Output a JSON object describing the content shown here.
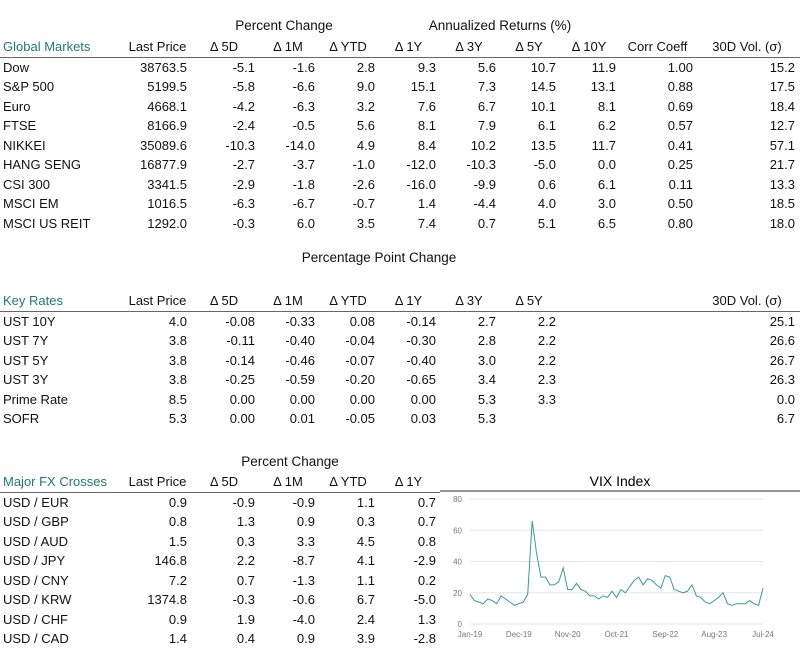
{
  "global": {
    "group_pct": "Percent Change",
    "group_ann": "Annualized Returns (%)",
    "headers": [
      "Global Markets",
      "Last Price",
      "Δ 5D",
      "Δ 1M",
      "Δ YTD",
      "Δ 1Y",
      "Δ 3Y",
      "Δ 5Y",
      "Δ 10Y",
      "Corr Coeff",
      "30D Vol. (σ)"
    ],
    "rows": [
      [
        "Dow",
        "38763.5",
        "-5.1",
        "-1.6",
        "2.8",
        "9.3",
        "5.6",
        "10.7",
        "11.9",
        "1.00",
        "15.2"
      ],
      [
        "S&P 500",
        "5199.5",
        "-5.8",
        "-6.6",
        "9.0",
        "15.1",
        "7.3",
        "14.5",
        "13.1",
        "0.88",
        "17.5"
      ],
      [
        "Euro",
        "4668.1",
        "-4.2",
        "-6.3",
        "3.2",
        "7.6",
        "6.7",
        "10.1",
        "8.1",
        "0.69",
        "18.4"
      ],
      [
        "FTSE",
        "8166.9",
        "-2.4",
        "-0.5",
        "5.6",
        "8.1",
        "7.9",
        "6.1",
        "6.2",
        "0.57",
        "12.7"
      ],
      [
        "NIKKEI",
        "35089.6",
        "-10.3",
        "-14.0",
        "4.9",
        "8.4",
        "10.2",
        "13.5",
        "11.7",
        "0.41",
        "57.1"
      ],
      [
        "HANG SENG",
        "16877.9",
        "-2.7",
        "-3.7",
        "-1.0",
        "-12.0",
        "-10.3",
        "-5.0",
        "0.0",
        "0.25",
        "21.7"
      ],
      [
        "CSI 300",
        "3341.5",
        "-2.9",
        "-1.8",
        "-2.6",
        "-16.0",
        "-9.9",
        "0.6",
        "6.1",
        "0.11",
        "13.3"
      ],
      [
        "MSCI EM",
        "1016.5",
        "-6.3",
        "-6.7",
        "-0.7",
        "1.4",
        "-4.4",
        "4.0",
        "3.0",
        "0.50",
        "18.5"
      ],
      [
        "MSCI US REIT",
        "1292.0",
        "-0.3",
        "6.0",
        "3.5",
        "7.4",
        "0.7",
        "5.1",
        "6.5",
        "0.80",
        "18.0"
      ]
    ]
  },
  "rates": {
    "group": "Percentage Point Change",
    "headers": [
      "Key Rates",
      "Last Price",
      "Δ 5D",
      "Δ 1M",
      "Δ YTD",
      "Δ 1Y",
      "Δ 3Y",
      "Δ 5Y",
      "",
      "",
      "30D Vol. (σ)"
    ],
    "rows": [
      [
        "UST 10Y",
        "4.0",
        "-0.08",
        "-0.33",
        "0.08",
        "-0.14",
        "2.7",
        "2.2",
        "",
        "",
        "25.1"
      ],
      [
        "UST 7Y",
        "3.8",
        "-0.11",
        "-0.40",
        "-0.04",
        "-0.30",
        "2.8",
        "2.2",
        "",
        "",
        "26.6"
      ],
      [
        "UST 5Y",
        "3.8",
        "-0.14",
        "-0.46",
        "-0.07",
        "-0.40",
        "3.0",
        "2.2",
        "",
        "",
        "26.7"
      ],
      [
        "UST 3Y",
        "3.8",
        "-0.25",
        "-0.59",
        "-0.20",
        "-0.65",
        "3.4",
        "2.3",
        "",
        "",
        "26.3"
      ],
      [
        "Prime Rate",
        "8.5",
        "0.00",
        "0.00",
        "0.00",
        "0.00",
        "5.3",
        "3.3",
        "",
        "",
        "0.0"
      ],
      [
        "SOFR",
        "5.3",
        "0.00",
        "0.01",
        "-0.05",
        "0.03",
        "5.3",
        "",
        "",
        "",
        "6.7"
      ]
    ]
  },
  "fx": {
    "group": "Percent Change",
    "headers": [
      "Major FX Crosses",
      "Last Price",
      "Δ 5D",
      "Δ 1M",
      "Δ YTD",
      "Δ 1Y"
    ],
    "rows": [
      [
        "USD / EUR",
        "0.9",
        "-0.9",
        "-0.9",
        "1.1",
        "0.7"
      ],
      [
        "USD / GBP",
        "0.8",
        "1.3",
        "0.9",
        "0.3",
        "0.7"
      ],
      [
        "USD / AUD",
        "1.5",
        "0.3",
        "3.3",
        "4.5",
        "0.8"
      ],
      [
        "USD / JPY",
        "146.8",
        "2.2",
        "-8.7",
        "4.1",
        "-2.9"
      ],
      [
        "USD / CNY",
        "7.2",
        "0.7",
        "-1.3",
        "1.1",
        "0.2"
      ],
      [
        "USD / KRW",
        "1374.8",
        "-0.3",
        "-0.6",
        "6.7",
        "-5.0"
      ],
      [
        "USD / CHF",
        "0.9",
        "1.9",
        "-4.0",
        "2.4",
        "1.3"
      ],
      [
        "USD / CAD",
        "1.4",
        "0.4",
        "0.9",
        "3.9",
        "-2.8"
      ]
    ]
  },
  "chart_data": {
    "type": "line",
    "title": "VIX Index",
    "ylim": [
      0,
      80
    ],
    "yticks": [
      "0",
      "20",
      "40",
      "60",
      "80"
    ],
    "xticks": [
      "Jan-19",
      "Dec-19",
      "Nov-20",
      "Oct-21",
      "Sep-22",
      "Aug-23",
      "Jul-24"
    ],
    "grid": true,
    "color": "#3a9a94",
    "x_start": "Jan-19",
    "x_end": "Jul-24",
    "frequency": "monthly",
    "values": [
      19,
      15,
      14,
      13,
      16,
      15,
      13,
      18,
      16,
      14,
      12,
      13,
      14,
      19,
      66,
      45,
      30,
      30,
      25,
      25,
      27,
      36,
      22,
      22,
      26,
      22,
      21,
      18,
      18,
      16,
      18,
      17,
      21,
      17,
      22,
      20,
      24,
      28,
      30,
      25,
      29,
      28,
      25,
      23,
      31,
      30,
      22,
      21,
      20,
      21,
      25,
      18,
      17,
      14,
      13,
      15,
      17,
      20,
      13,
      12,
      13,
      13,
      13,
      15,
      13,
      12,
      23
    ]
  },
  "colors": {
    "accent": "#1f7a70"
  }
}
